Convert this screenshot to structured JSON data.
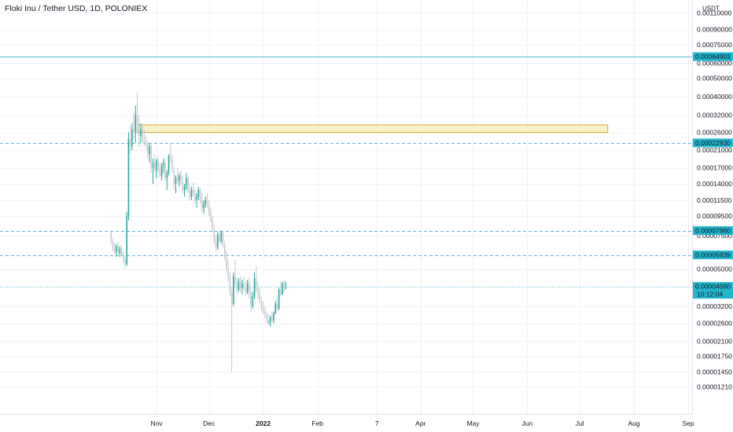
{
  "header": {
    "title": "Floki Inu / Tether USD, 1D, POLONIEX"
  },
  "colors": {
    "background": "#ffffff",
    "grid": "#f0f3fa",
    "candle": "#26a69a",
    "candle_down": "#c6c9cf",
    "line": "#5eb7d3",
    "badge": "#22b5cc",
    "zone_fill": "#f3ecb4",
    "zone_border": "#d7a92f",
    "axis_border": "#e0e3eb"
  },
  "chart_data": {
    "type": "candlestick",
    "title": "Floki Inu / Tether USD, 1D, POLONIEX",
    "scale": "log",
    "y_unit": "USDT",
    "y_ticks": [
      "0.00110000",
      "0.00090000",
      "0.00075000",
      "0.00060000",
      "0.00050000",
      "0.00040000",
      "0.00032000",
      "0.00026000",
      "0.00021000",
      "0.00017000",
      "0.00014000",
      "0.00011500",
      "0.00009500",
      "0.00007500",
      "0.00005000",
      "0.00003200",
      "0.00002600",
      "0.00002100",
      "0.00001750",
      "0.00001450",
      "0.00001210"
    ],
    "x_ticks": [
      {
        "label": "Nov",
        "date": "2021-11-01"
      },
      {
        "label": "Dec",
        "date": "2021-12-01"
      },
      {
        "label": "2022",
        "date": "2022-01-01"
      },
      {
        "label": "Feb",
        "date": "2022-02-01"
      },
      {
        "label": "7",
        "date": "2022-03-07"
      },
      {
        "label": "Apr",
        "date": "2022-04-01"
      },
      {
        "label": "May",
        "date": "2022-05-01"
      },
      {
        "label": "Jun",
        "date": "2022-06-01"
      },
      {
        "label": "Jul",
        "date": "2022-07-01"
      },
      {
        "label": "Aug",
        "date": "2022-08-01"
      },
      {
        "label": "Sep",
        "date": "2022-09-01"
      }
    ],
    "x_range": [
      "2021-08-15",
      "2022-09-07"
    ],
    "candles_ohlc": [
      [
        7.8e-05,
        8e-05,
        6.8e-05,
        7e-05
      ],
      [
        7e-05,
        7.2e-05,
        6.2e-05,
        6.5e-05
      ],
      [
        6.5e-05,
        6.9e-05,
        6e-05,
        6.2e-05
      ],
      [
        6.2e-05,
        6.8e-05,
        5.8e-05,
        6.6e-05
      ],
      [
        6.6e-05,
        7e-05,
        6e-05,
        6.1e-05
      ],
      [
        6.1e-05,
        6.6e-05,
        5.8e-05,
        6.4e-05
      ],
      [
        6.4e-05,
        6.7e-05,
        5.9e-05,
        6e-05
      ],
      [
        6e-05,
        6.2e-05,
        5.4e-05,
        5.6e-05
      ],
      [
        5.6e-05,
        5.8e-05,
        5e-05,
        5.3e-05
      ],
      [
        5.3e-05,
        0.0001,
        5.2e-05,
        9.5e-05
      ],
      [
        9.5e-05,
        0.00026,
        9e-05,
        0.00024
      ],
      [
        0.00024,
        0.00028,
        0.0002,
        0.00022
      ],
      [
        0.00022,
        0.00029,
        0.00021,
        0.00027
      ],
      [
        0.00027,
        0.00033,
        0.00024,
        0.00026
      ],
      [
        0.00026,
        0.00036,
        0.00023,
        0.00032
      ],
      [
        0.00032,
        0.00042,
        0.00027,
        0.00029
      ],
      [
        0.00029,
        0.00032,
        0.00022,
        0.00025
      ],
      [
        0.00025,
        0.00029,
        0.00023,
        0.00027
      ],
      [
        0.00027,
        0.00029,
        0.00023,
        0.000245
      ],
      [
        0.000245,
        0.00027,
        0.00022,
        0.00023
      ],
      [
        0.00023,
        0.00025,
        0.00021,
        0.000225
      ],
      [
        0.000225,
        0.000235,
        0.00019,
        0.0002
      ],
      [
        0.0002,
        0.00023,
        0.00018,
        0.00022
      ],
      [
        0.00022,
        0.000225,
        0.00016,
        0.00017
      ],
      [
        0.00017,
        0.00019,
        0.00014,
        0.00018
      ],
      [
        0.00018,
        0.0002,
        0.00016,
        0.000165
      ],
      [
        0.000165,
        0.00019,
        0.00015,
        0.000185
      ],
      [
        0.000185,
        0.000195,
        0.00016,
        0.00017
      ],
      [
        0.00017,
        0.00018,
        0.00015,
        0.000155
      ],
      [
        0.000155,
        0.00018,
        0.000145,
        0.000175
      ],
      [
        0.000175,
        0.00019,
        0.00016,
        0.00018
      ],
      [
        0.00018,
        0.000185,
        0.000145,
        0.00015
      ],
      [
        0.00015,
        0.000165,
        0.00013,
        0.00016
      ],
      [
        0.00016,
        0.0002,
        0.000155,
        0.000195
      ],
      [
        0.000195,
        0.00023,
        0.00018,
        0.00019
      ],
      [
        0.00019,
        0.0002,
        0.00016,
        0.000165
      ],
      [
        0.000165,
        0.00017,
        0.00013,
        0.00014
      ],
      [
        0.00014,
        0.000155,
        0.000125,
        0.00015
      ],
      [
        0.00015,
        0.00017,
        0.00014,
        0.000145
      ],
      [
        0.000145,
        0.00016,
        0.000135,
        0.000155
      ],
      [
        0.000155,
        0.000165,
        0.00014,
        0.000145
      ],
      [
        0.000145,
        0.000155,
        0.000125,
        0.00013
      ],
      [
        0.00013,
        0.00014,
        0.00012,
        0.000135
      ],
      [
        0.000135,
        0.00016,
        0.00013,
        0.00015
      ],
      [
        0.00015,
        0.000155,
        0.000125,
        0.00013
      ],
      [
        0.00013,
        0.00014,
        0.000115,
        0.00012
      ],
      [
        0.00012,
        0.000135,
        0.000115,
        0.00013
      ],
      [
        0.00013,
        0.000142,
        0.00012,
        0.000125
      ],
      [
        0.000125,
        0.00013,
        0.00011,
        0.000115
      ],
      [
        0.000115,
        0.000125,
        0.000105,
        0.00012
      ],
      [
        0.00012,
        0.000135,
        0.000115,
        0.00013
      ],
      [
        0.00013,
        0.000133,
        0.00011,
        0.000115
      ],
      [
        0.000115,
        0.000125,
        0.0001,
        0.000105
      ],
      [
        0.000105,
        0.000115,
        9.8e-05,
        0.00011
      ],
      [
        0.00011,
        0.00012,
        0.000105,
        0.000115
      ],
      [
        0.000115,
        0.000125,
        0.000105,
        0.00011
      ],
      [
        0.00011,
        0.000115,
        9.5e-05,
        0.0001
      ],
      [
        0.0001,
        0.000105,
        8.8e-05,
        9e-05
      ],
      [
        9e-05,
        9.5e-05,
        7.8e-05,
        8e-05
      ],
      [
        8e-05,
        8.5e-05,
        6.8e-05,
        7e-05
      ],
      [
        7e-05,
        7.5e-05,
        6.2e-05,
        6.5e-05
      ],
      [
        6.5e-05,
        7.8e-05,
        6.3e-05,
        7.6e-05
      ],
      [
        7.6e-05,
        8e-05,
        6.9e-05,
        7e-05
      ],
      [
        7e-05,
        8e-05,
        6.8e-05,
        7.8e-05
      ],
      [
        7.8e-05,
        7.9e-05,
        6.5e-05,
        6.7e-05
      ],
      [
        6.7e-05,
        7e-05,
        5.6e-05,
        5.8e-05
      ],
      [
        5.8e-05,
        6.2e-05,
        4.8e-05,
        5e-05
      ],
      [
        5e-05,
        5.6e-05,
        4.3e-05,
        4.5e-05
      ],
      [
        4.5e-05,
        4.8e-05,
        3.6e-05,
        3.8e-05
      ],
      [
        3.8e-05,
        4e-05,
        1.45e-05,
        3.3e-05
      ],
      [
        3.3e-05,
        4.8e-05,
        3.2e-05,
        4.6e-05
      ],
      [
        4.6e-05,
        5.6e-05,
        4e-05,
        4.2e-05
      ],
      [
        4.2e-05,
        4.5e-05,
        3.7e-05,
        3.9e-05
      ],
      [
        3.9e-05,
        4.5e-05,
        3.8e-05,
        4.3e-05
      ],
      [
        4.3e-05,
        4.6e-05,
        3.8e-05,
        4e-05
      ],
      [
        4e-05,
        4.4e-05,
        3.7e-05,
        4.2e-05
      ],
      [
        4.2e-05,
        4.6e-05,
        3.9e-05,
        4e-05
      ],
      [
        4e-05,
        4.3e-05,
        3.6e-05,
        3.8e-05
      ],
      [
        3.8e-05,
        4.4e-05,
        3.7e-05,
        4.2e-05
      ],
      [
        4.2e-05,
        4.5e-05,
        3.5e-05,
        3.7e-05
      ],
      [
        3.7e-05,
        4e-05,
        3e-05,
        3.2e-05
      ],
      [
        3.2e-05,
        3.8e-05,
        3.1e-05,
        3.6e-05
      ],
      [
        3.6e-05,
        4.8e-05,
        3.5e-05,
        4.5e-05
      ],
      [
        4.5e-05,
        5.2e-05,
        3.8e-05,
        4e-05
      ],
      [
        4e-05,
        4.3e-05,
        3.5e-05,
        3.7e-05
      ],
      [
        3.7e-05,
        4e-05,
        3.3e-05,
        3.4e-05
      ],
      [
        3.4e-05,
        3.6e-05,
        3e-05,
        3.1e-05
      ],
      [
        3.1e-05,
        3.4e-05,
        2.9e-05,
        3e-05
      ],
      [
        3e-05,
        3.2e-05,
        2.75e-05,
        2.9e-05
      ],
      [
        2.9e-05,
        3e-05,
        2.6e-05,
        2.7e-05
      ],
      [
        2.7e-05,
        2.9e-05,
        2.55e-05,
        2.6e-05
      ],
      [
        2.6e-05,
        2.85e-05,
        2.5e-05,
        2.8e-05
      ],
      [
        2.8e-05,
        3e-05,
        2.65e-05,
        2.7e-05
      ],
      [
        2.7e-05,
        3e-05,
        2.6e-05,
        2.95e-05
      ],
      [
        2.95e-05,
        3.4e-05,
        2.9e-05,
        3.3e-05
      ],
      [
        3.3e-05,
        3.6e-05,
        3e-05,
        3.1e-05
      ],
      [
        3.1e-05,
        4e-05,
        3.05e-05,
        3.9e-05
      ],
      [
        3.9e-05,
        4.3e-05,
        3.6e-05,
        3.7e-05
      ],
      [
        3.7e-05,
        4.3e-05,
        3.65e-05,
        4.2e-05
      ],
      [
        4.2e-05,
        4.4e-05,
        3.8e-05,
        4e-05
      ],
      [
        4e-05,
        4.3e-05,
        3.9e-05,
        4.06e-05
      ]
    ],
    "first_candle_date": "2021-10-06",
    "levels": [
      {
        "price": "0.00064903",
        "style": "solid"
      },
      {
        "price": "0.00022930",
        "style": "dashed"
      },
      {
        "price": "0.00007960",
        "style": "dashed"
      },
      {
        "price": "0.00005939",
        "style": "dashed"
      },
      {
        "price": "0.00004060",
        "style": "dotted",
        "countdown": "10:12:04"
      }
    ],
    "zone": {
      "price_low": 0.00026,
      "price_high": 0.000285,
      "date_start": "2021-10-21",
      "date_end": "2022-07-17"
    }
  }
}
